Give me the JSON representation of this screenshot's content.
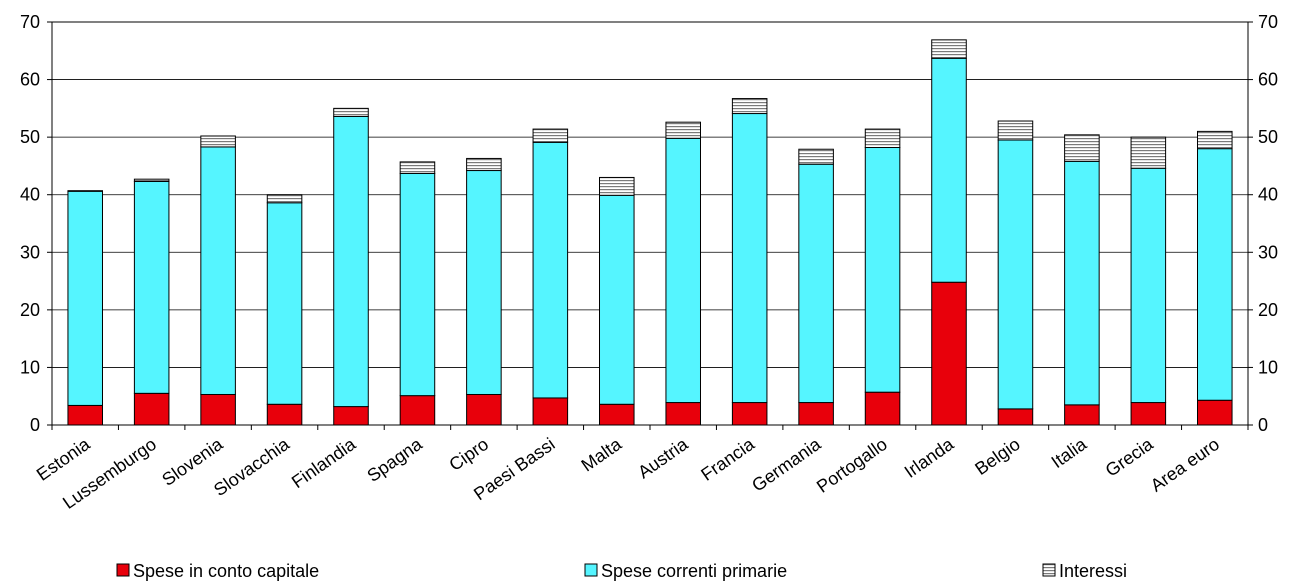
{
  "chart_data": {
    "type": "bar",
    "stacked": true,
    "categories": [
      "Estonia",
      "Lussemburgo",
      "Slovenia",
      "Slovacchia",
      "Finlandia",
      "Spagna",
      "Cipro",
      "Paesi Bassi",
      "Malta",
      "Austria",
      "Francia",
      "Germania",
      "Portogallo",
      "Irlanda",
      "Belgio",
      "Italia",
      "Grecia",
      "Area euro"
    ],
    "series": [
      {
        "name": "Spese in conto capitale",
        "color": "#e8000b",
        "pattern": "solid",
        "values": [
          3.4,
          5.5,
          5.3,
          3.6,
          3.2,
          5.1,
          5.3,
          4.7,
          3.6,
          3.9,
          3.9,
          3.9,
          5.7,
          24.8,
          2.8,
          3.5,
          3.9,
          4.3
        ]
      },
      {
        "name": "Spese correnti primarie",
        "color": "#55f5ff",
        "pattern": "solid",
        "values": [
          37.2,
          36.8,
          43.0,
          35.0,
          50.4,
          38.6,
          38.9,
          44.4,
          36.3,
          45.9,
          50.2,
          41.4,
          42.5,
          38.9,
          46.7,
          42.3,
          40.7,
          43.7
        ]
      },
      {
        "name": "Interessi",
        "color": "#c8c8c8",
        "pattern": "horizontal-lines",
        "values": [
          0.1,
          0.4,
          1.9,
          1.4,
          1.4,
          2.0,
          2.1,
          2.3,
          3.1,
          2.8,
          2.6,
          2.6,
          3.2,
          3.2,
          3.3,
          4.6,
          5.4,
          3.0
        ]
      }
    ],
    "ylim": [
      0,
      70
    ],
    "yticks": [
      0,
      10,
      20,
      30,
      40,
      50,
      60,
      70
    ],
    "secondary_yticks": [
      0,
      10,
      20,
      30,
      40,
      50,
      60,
      70
    ],
    "grid": true,
    "legend_position": "bottom"
  }
}
